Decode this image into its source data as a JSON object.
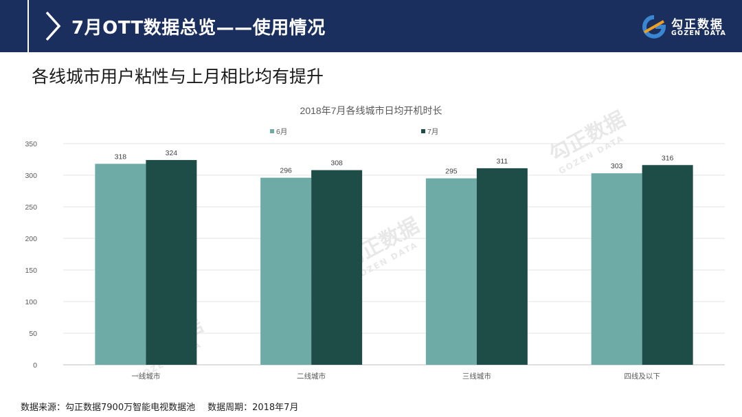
{
  "header": {
    "title": "7月OTT数据总览——使用情况",
    "logo_cn": "勾正数据",
    "logo_en": "GOZEN DATA"
  },
  "subtitle": "各线城市用户粘性与上月相比均有提升",
  "chart_data": {
    "type": "bar",
    "title": "2018年7月各线城市日均开机时长",
    "categories": [
      "一线城市",
      "二线城市",
      "三线城市",
      "四线及以下"
    ],
    "series": [
      {
        "name": "6月",
        "values": [
          318,
          296,
          295,
          303
        ],
        "color": "#6eaba6"
      },
      {
        "name": "7月",
        "values": [
          324,
          308,
          311,
          316
        ],
        "color": "#1e4d48"
      }
    ],
    "ylim": [
      0,
      350
    ],
    "yticks": [
      0,
      50,
      100,
      150,
      200,
      250,
      300,
      350
    ],
    "grid": true,
    "legend": "top-center"
  },
  "footer": {
    "source": "数据来源：勾正数据7900万智能电视数据池",
    "period": "数据周期：2018年7月"
  },
  "colors": {
    "header_bg": "#1b2f5e",
    "accent": "#1b2f5e"
  },
  "icons": {
    "header_chevron": "chevron-right-icon",
    "logo_mark": "gozen-logo-icon"
  }
}
